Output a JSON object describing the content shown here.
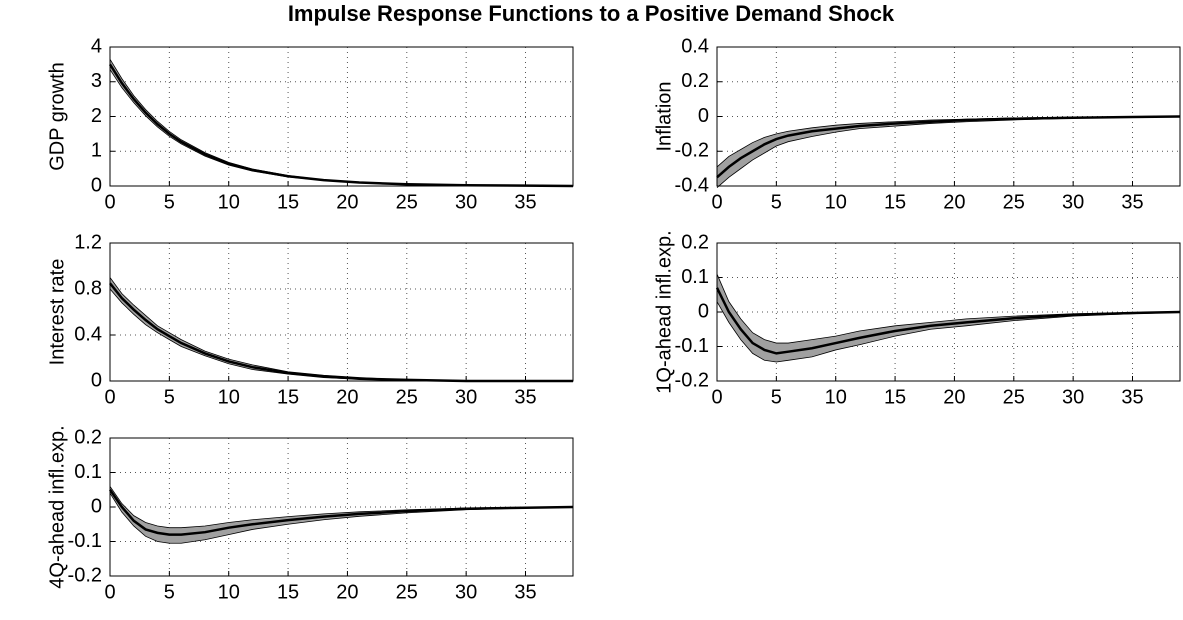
{
  "title": "Impulse Response Functions to a Positive Demand Shock",
  "chart_data": [
    {
      "type": "line",
      "ylabel": "GDP growth",
      "color": "#000000",
      "band_color": "#a0a0a0",
      "grid": true,
      "x": [
        0,
        1,
        2,
        3,
        4,
        5,
        6,
        8,
        10,
        12,
        15,
        18,
        21,
        25,
        30,
        35,
        39
      ],
      "values": [
        3.5,
        2.96,
        2.5,
        2.11,
        1.78,
        1.5,
        1.27,
        0.91,
        0.64,
        0.46,
        0.28,
        0.17,
        0.1,
        0.05,
        0.02,
        0.01,
        0
      ],
      "upper": [
        3.65,
        3.09,
        2.6,
        2.2,
        1.86,
        1.57,
        1.33,
        0.96,
        0.68,
        0.49,
        0.3,
        0.18,
        0.11,
        0.06,
        0.03,
        0.01,
        0.01
      ],
      "lower": [
        3.35,
        2.83,
        2.4,
        2.02,
        1.7,
        1.43,
        1.21,
        0.86,
        0.6,
        0.43,
        0.26,
        0.16,
        0.09,
        0.04,
        0.02,
        0.01,
        0
      ],
      "xlim": [
        0,
        39
      ],
      "xticks": [
        0,
        5,
        10,
        15,
        20,
        25,
        30,
        35
      ],
      "ylim": [
        0,
        4
      ],
      "yticks": [
        0,
        1,
        2,
        3,
        4
      ]
    },
    {
      "type": "line",
      "ylabel": "Inflation",
      "color": "#000000",
      "band_color": "#a0a0a0",
      "grid": true,
      "x": [
        0,
        1,
        2,
        3,
        4,
        5,
        6,
        8,
        10,
        12,
        15,
        18,
        21,
        25,
        30,
        35,
        39
      ],
      "values": [
        -0.35,
        -0.29,
        -0.24,
        -0.2,
        -0.16,
        -0.13,
        -0.11,
        -0.085,
        -0.07,
        -0.055,
        -0.04,
        -0.03,
        -0.02,
        -0.013,
        -0.007,
        -0.003,
        0
      ],
      "upper": [
        -0.29,
        -0.23,
        -0.19,
        -0.15,
        -0.12,
        -0.1,
        -0.085,
        -0.065,
        -0.05,
        -0.04,
        -0.03,
        -0.02,
        -0.015,
        -0.008,
        -0.004,
        -0.001,
        0
      ],
      "lower": [
        -0.41,
        -0.35,
        -0.3,
        -0.25,
        -0.21,
        -0.17,
        -0.145,
        -0.115,
        -0.09,
        -0.07,
        -0.055,
        -0.04,
        -0.03,
        -0.02,
        -0.01,
        -0.005,
        -0.001
      ],
      "xlim": [
        0,
        39
      ],
      "xticks": [
        0,
        5,
        10,
        15,
        20,
        25,
        30,
        35
      ],
      "ylim": [
        -0.4,
        0.4
      ],
      "yticks": [
        -0.4,
        -0.2,
        0,
        0.2,
        0.4
      ]
    },
    {
      "type": "line",
      "ylabel": "Interest rate",
      "color": "#000000",
      "band_color": "#a0a0a0",
      "grid": true,
      "x": [
        0,
        1,
        2,
        3,
        4,
        5,
        6,
        8,
        10,
        12,
        15,
        18,
        21,
        25,
        30,
        35,
        39
      ],
      "values": [
        0.85,
        0.72,
        0.62,
        0.53,
        0.45,
        0.39,
        0.33,
        0.24,
        0.17,
        0.12,
        0.07,
        0.04,
        0.02,
        0.01,
        0,
        0,
        0
      ],
      "upper": [
        0.9,
        0.76,
        0.66,
        0.57,
        0.48,
        0.42,
        0.36,
        0.26,
        0.19,
        0.14,
        0.08,
        0.05,
        0.03,
        0.01,
        0.005,
        0,
        0
      ],
      "lower": [
        0.8,
        0.68,
        0.58,
        0.49,
        0.42,
        0.36,
        0.3,
        0.22,
        0.15,
        0.1,
        0.06,
        0.03,
        0.015,
        0.005,
        0,
        0,
        0
      ],
      "xlim": [
        0,
        39
      ],
      "xticks": [
        0,
        5,
        10,
        15,
        20,
        25,
        30,
        35
      ],
      "ylim": [
        0,
        1.2
      ],
      "yticks": [
        0,
        0.4,
        0.8,
        1.2
      ]
    },
    {
      "type": "line",
      "ylabel": "1Q-ahead infl.exp.",
      "color": "#000000",
      "band_color": "#a0a0a0",
      "grid": true,
      "x": [
        0,
        1,
        2,
        3,
        4,
        5,
        6,
        8,
        10,
        12,
        15,
        18,
        21,
        25,
        30,
        35,
        39
      ],
      "values": [
        0.07,
        0,
        -0.05,
        -0.09,
        -0.11,
        -0.12,
        -0.115,
        -0.105,
        -0.09,
        -0.075,
        -0.055,
        -0.04,
        -0.03,
        -0.018,
        -0.008,
        -0.003,
        0
      ],
      "upper": [
        0.11,
        0.03,
        -0.02,
        -0.06,
        -0.08,
        -0.09,
        -0.09,
        -0.08,
        -0.07,
        -0.055,
        -0.04,
        -0.03,
        -0.02,
        -0.012,
        -0.005,
        -0.002,
        0
      ],
      "lower": [
        0.03,
        -0.03,
        -0.08,
        -0.12,
        -0.14,
        -0.145,
        -0.14,
        -0.13,
        -0.11,
        -0.095,
        -0.07,
        -0.05,
        -0.04,
        -0.025,
        -0.012,
        -0.005,
        -0.001
      ],
      "xlim": [
        0,
        39
      ],
      "xticks": [
        0,
        5,
        10,
        15,
        20,
        25,
        30,
        35
      ],
      "ylim": [
        -0.2,
        0.2
      ],
      "yticks": [
        -0.2,
        -0.1,
        0,
        0.1,
        0.2
      ]
    },
    {
      "type": "line",
      "ylabel": "4Q-ahead infl.exp.",
      "color": "#000000",
      "band_color": "#a0a0a0",
      "grid": true,
      "x": [
        0,
        1,
        2,
        3,
        4,
        5,
        6,
        8,
        10,
        12,
        15,
        18,
        21,
        25,
        30,
        35,
        39
      ],
      "values": [
        0.05,
        0,
        -0.04,
        -0.065,
        -0.075,
        -0.08,
        -0.08,
        -0.073,
        -0.06,
        -0.05,
        -0.038,
        -0.028,
        -0.02,
        -0.012,
        -0.005,
        -0.002,
        0
      ],
      "upper": [
        0.06,
        0.01,
        -0.025,
        -0.045,
        -0.055,
        -0.06,
        -0.06,
        -0.055,
        -0.045,
        -0.037,
        -0.028,
        -0.02,
        -0.014,
        -0.008,
        -0.003,
        -0.001,
        0
      ],
      "lower": [
        0.04,
        -0.015,
        -0.055,
        -0.085,
        -0.1,
        -0.105,
        -0.105,
        -0.095,
        -0.08,
        -0.065,
        -0.05,
        -0.037,
        -0.027,
        -0.017,
        -0.008,
        -0.003,
        -0.001
      ],
      "xlim": [
        0,
        39
      ],
      "xticks": [
        0,
        5,
        10,
        15,
        20,
        25,
        30,
        35
      ],
      "ylim": [
        -0.2,
        0.2
      ],
      "yticks": [
        -0.2,
        -0.1,
        0,
        0.1,
        0.2
      ]
    }
  ]
}
